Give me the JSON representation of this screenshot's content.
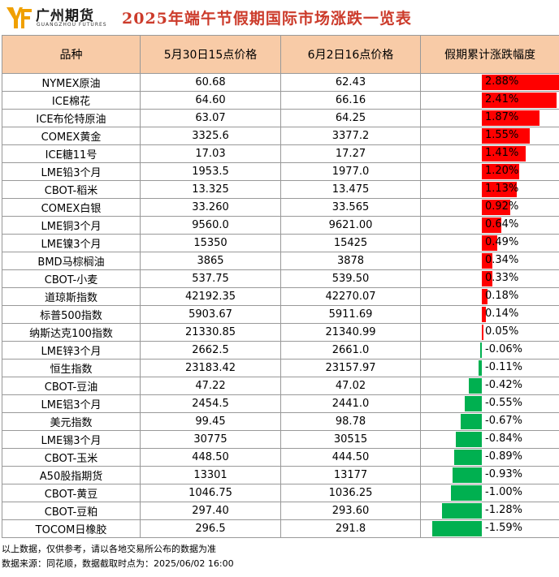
{
  "brand": {
    "name_cn": "广州期货",
    "name_en": "GUANGZHOU FUTURES"
  },
  "title": "2025年端午节假期国际市场涨跌一览表",
  "table": {
    "headers": [
      "品种",
      "5月30日15点价格",
      "6月2日16点价格",
      "假期累计涨跌幅度"
    ],
    "rows": [
      {
        "name": "NYMEX原油",
        "p1": "60.68",
        "p2": "62.43",
        "pct": "2.88%",
        "value": 2.88
      },
      {
        "name": "ICE棉花",
        "p1": "64.60",
        "p2": "66.16",
        "pct": "2.41%",
        "value": 2.41
      },
      {
        "name": "ICE布伦特原油",
        "p1": "63.07",
        "p2": "64.25",
        "pct": "1.87%",
        "value": 1.87
      },
      {
        "name": "COMEX黄金",
        "p1": "3325.6",
        "p2": "3377.2",
        "pct": "1.55%",
        "value": 1.55
      },
      {
        "name": "ICE糖11号",
        "p1": "17.03",
        "p2": "17.27",
        "pct": "1.41%",
        "value": 1.41
      },
      {
        "name": "LME铅3个月",
        "p1": "1953.5",
        "p2": "1977.0",
        "pct": "1.20%",
        "value": 1.2
      },
      {
        "name": "CBOT-稻米",
        "p1": "13.325",
        "p2": "13.475",
        "pct": "1.13%",
        "value": 1.13
      },
      {
        "name": "COMEX白银",
        "p1": "33.260",
        "p2": "33.565",
        "pct": "0.92%",
        "value": 0.92
      },
      {
        "name": "LME铜3个月",
        "p1": "9560.0",
        "p2": "9621.00",
        "pct": "0.64%",
        "value": 0.64
      },
      {
        "name": "LME镍3个月",
        "p1": "15350",
        "p2": "15425",
        "pct": "0.49%",
        "value": 0.49
      },
      {
        "name": "BMD马棕榈油",
        "p1": "3865",
        "p2": "3878",
        "pct": "0.34%",
        "value": 0.34
      },
      {
        "name": "CBOT-小麦",
        "p1": "537.75",
        "p2": "539.50",
        "pct": "0.33%",
        "value": 0.33
      },
      {
        "name": "道琼斯指数",
        "p1": "42192.35",
        "p2": "42270.07",
        "pct": "0.18%",
        "value": 0.18
      },
      {
        "name": "标普500指数",
        "p1": "5903.67",
        "p2": "5911.69",
        "pct": "0.14%",
        "value": 0.14
      },
      {
        "name": "纳斯达克100指数",
        "p1": "21330.85",
        "p2": "21340.99",
        "pct": "0.05%",
        "value": 0.05
      },
      {
        "name": "LME锌3个月",
        "p1": "2662.5",
        "p2": "2661.0",
        "pct": "-0.06%",
        "value": -0.06
      },
      {
        "name": "恒生指数",
        "p1": "23183.42",
        "p2": "23157.97",
        "pct": "-0.11%",
        "value": -0.11
      },
      {
        "name": "CBOT-豆油",
        "p1": "47.22",
        "p2": "47.02",
        "pct": "-0.42%",
        "value": -0.42
      },
      {
        "name": "LME铝3个月",
        "p1": "2454.5",
        "p2": "2441.0",
        "pct": "-0.55%",
        "value": -0.55
      },
      {
        "name": "美元指数",
        "p1": "99.45",
        "p2": "98.78",
        "pct": "-0.67%",
        "value": -0.67
      },
      {
        "name": "LME锡3个月",
        "p1": "30775",
        "p2": "30515",
        "pct": "-0.84%",
        "value": -0.84
      },
      {
        "name": "CBOT-玉米",
        "p1": "448.50",
        "p2": "444.50",
        "pct": "-0.89%",
        "value": -0.89
      },
      {
        "name": "A50股指期货",
        "p1": "13301",
        "p2": "13177",
        "pct": "-0.93%",
        "value": -0.93
      },
      {
        "name": "CBOT-黄豆",
        "p1": "1046.75",
        "p2": "1036.25",
        "pct": "-1.00%",
        "value": -1.0
      },
      {
        "name": "CBOT-豆粕",
        "p1": "297.40",
        "p2": "293.60",
        "pct": "-1.28%",
        "value": -1.28
      },
      {
        "name": "TOCOM日橡胶",
        "p1": "296.5",
        "p2": "291.8",
        "pct": "-1.59%",
        "value": -1.59
      }
    ]
  },
  "colors": {
    "positive": "#ff0000",
    "negative": "#00b050",
    "header_bg": "#f8cba7",
    "title": "#cc3b2b",
    "logo": "#f0a000"
  },
  "footer": {
    "note": "以上数据，仅供参考，请以各地交易所公布的数据为准",
    "source": "数据来源：同花顺，数据截取时点为：2025/06/02 16:00"
  }
}
